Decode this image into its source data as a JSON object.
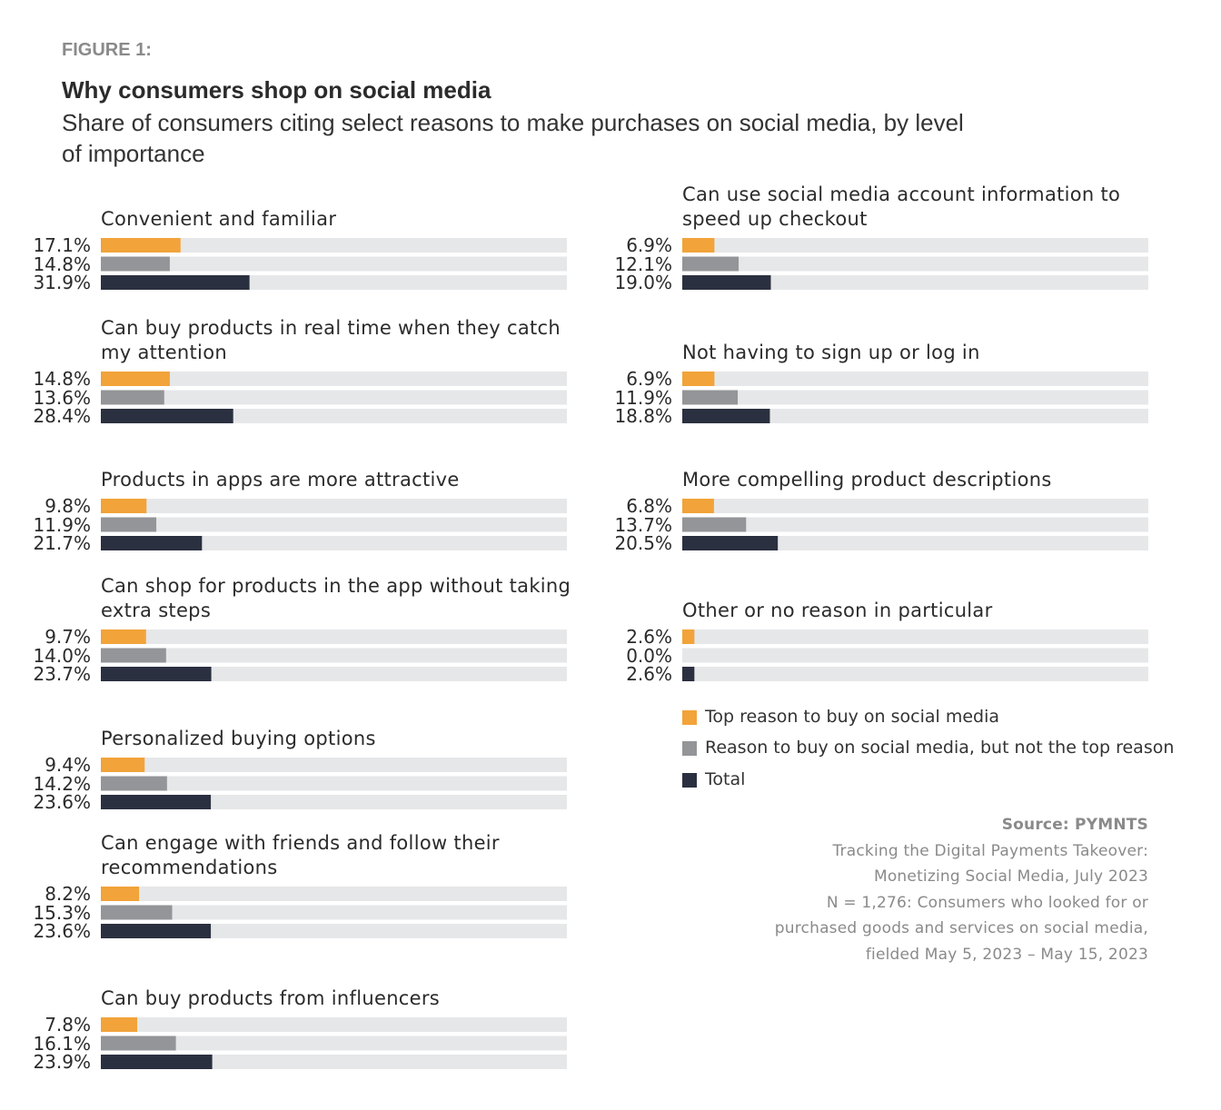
{
  "chart_data": {
    "type": "bar",
    "figure_label": "FIGURE 1:",
    "title": "Why consumers shop on social media",
    "subtitle": "Share of consumers citing select reasons to make purchases on social media, by level of importance",
    "categories": [
      "Convenient and familiar",
      "Can buy products in real time when they catch my attention",
      "Products in apps are more attractive",
      "Can shop for products in the app without taking extra steps",
      "Personalized buying options",
      "Can engage with friends and follow their recommendations",
      "Can buy products from influencers",
      "Can use social media account information to speed up checkout",
      "Not having to sign up or log in",
      "More compelling product descriptions",
      "Other or no reason in particular"
    ],
    "series": [
      {
        "name": "Top reason to buy on social media",
        "color": "#f2a33a",
        "values": [
          17.1,
          14.8,
          9.8,
          9.7,
          9.4,
          8.2,
          7.8,
          6.9,
          6.9,
          6.8,
          2.6
        ],
        "value_labels": [
          "17.1%",
          "14.8%",
          "9.8%",
          "9.7%",
          "9.4%",
          "8.2%",
          "7.8%",
          "6.9%",
          "6.9%",
          "6.8%",
          "2.6%"
        ]
      },
      {
        "name": "Reason to buy on social media, but not the top reason",
        "color": "#939598",
        "values": [
          14.8,
          13.6,
          11.9,
          14.0,
          14.2,
          15.3,
          16.1,
          12.1,
          11.9,
          13.7,
          0.0
        ],
        "value_labels": [
          "14.8%",
          "13.6%",
          "11.9%",
          "14.0%",
          "14.2%",
          "15.3%",
          "16.1%",
          "12.1%",
          "11.9%",
          "13.7%",
          "0.0%"
        ]
      },
      {
        "name": "Total",
        "color": "#2b3040",
        "values": [
          31.9,
          28.4,
          21.7,
          23.7,
          23.6,
          23.6,
          23.9,
          19.0,
          18.8,
          20.5,
          2.6
        ],
        "value_labels": [
          "31.9%",
          "28.4%",
          "21.7%",
          "23.7%",
          "23.6%",
          "23.6%",
          "23.9%",
          "19.0%",
          "18.8%",
          "20.5%",
          "2.6%"
        ]
      }
    ],
    "xlim": [
      0,
      100
    ],
    "track_color": "#e6e7e8",
    "source": {
      "heading": "Source: PYMNTS",
      "lines": [
        "Tracking the Digital Payments Takeover:",
        "Monetizing Social Media, July 2023",
        "N = 1,276: Consumers who looked for or",
        "purchased goods and services on social media,",
        "fielded May 5, 2023 – May 15, 2023"
      ]
    }
  }
}
